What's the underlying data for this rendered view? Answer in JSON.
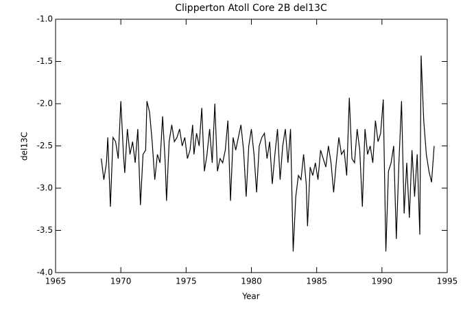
{
  "chart_data": {
    "type": "line",
    "title": "Clipperton Atoll Core 2B del13C",
    "x_label": "Year",
    "y_label": "del13C",
    "xlim": [
      1965,
      1995
    ],
    "xticks": [
      1965,
      1970,
      1975,
      1980,
      1985,
      1990,
      1995
    ],
    "ylim": [
      -4.0,
      -1.0
    ],
    "yticks": [
      {
        "value": -1.0,
        "label": "-1.0"
      },
      -1.5,
      {
        "value": -2.0,
        "label": "-2.0"
      },
      -2.5,
      {
        "value": -3.0,
        "label": "-3.0"
      },
      -3.5,
      {
        "value": -4.0,
        "label": "-4.0"
      }
    ],
    "color": "#000000",
    "x": [
      1968.5,
      1968.7,
      1968.9,
      1969.0,
      1969.2,
      1969.4,
      1969.6,
      1969.8,
      1970.0,
      1970.2,
      1970.3,
      1970.5,
      1970.7,
      1970.9,
      1971.1,
      1971.3,
      1971.5,
      1971.7,
      1971.9,
      1972.0,
      1972.2,
      1972.4,
      1972.6,
      1972.8,
      1973.0,
      1973.2,
      1973.4,
      1973.5,
      1973.7,
      1973.9,
      1974.1,
      1974.3,
      1974.5,
      1974.7,
      1974.9,
      1975.1,
      1975.3,
      1975.5,
      1975.6,
      1975.8,
      1976.0,
      1976.2,
      1976.4,
      1976.6,
      1976.8,
      1977.0,
      1977.2,
      1977.4,
      1977.6,
      1977.8,
      1978.0,
      1978.2,
      1978.4,
      1978.6,
      1978.8,
      1979.0,
      1979.2,
      1979.4,
      1979.6,
      1979.8,
      1980.0,
      1980.2,
      1980.4,
      1980.6,
      1980.8,
      1981.0,
      1981.2,
      1981.4,
      1981.6,
      1981.8,
      1982.0,
      1982.2,
      1982.4,
      1982.6,
      1982.8,
      1983.0,
      1983.2,
      1983.4,
      1983.6,
      1983.8,
      1984.0,
      1984.2,
      1984.3,
      1984.5,
      1984.7,
      1984.9,
      1985.1,
      1985.3,
      1985.5,
      1985.7,
      1985.9,
      1986.1,
      1986.3,
      1986.5,
      1986.7,
      1986.9,
      1987.1,
      1987.3,
      1987.5,
      1987.7,
      1987.9,
      1988.1,
      1988.3,
      1988.5,
      1988.7,
      1988.9,
      1989.1,
      1989.3,
      1989.5,
      1989.7,
      1989.9,
      1990.1,
      1990.3,
      1990.5,
      1990.7,
      1990.9,
      1991.1,
      1991.3,
      1991.5,
      1991.7,
      1991.9,
      1992.1,
      1992.3,
      1992.5,
      1992.7,
      1992.9,
      1993.0,
      1993.2,
      1993.4,
      1993.6,
      1993.8,
      1994.0
    ],
    "values": [
      -2.65,
      -2.9,
      -2.7,
      -2.4,
      -3.22,
      -2.4,
      -2.45,
      -2.65,
      -1.97,
      -2.6,
      -2.82,
      -2.3,
      -2.6,
      -2.45,
      -2.7,
      -2.3,
      -3.2,
      -2.6,
      -2.55,
      -1.97,
      -2.1,
      -2.45,
      -2.9,
      -2.6,
      -2.7,
      -2.15,
      -2.7,
      -3.15,
      -2.45,
      -2.25,
      -2.45,
      -2.4,
      -2.3,
      -2.5,
      -2.4,
      -2.65,
      -2.55,
      -2.25,
      -2.6,
      -2.35,
      -2.5,
      -2.05,
      -2.8,
      -2.6,
      -2.3,
      -2.7,
      -2.0,
      -2.8,
      -2.65,
      -2.7,
      -2.55,
      -2.2,
      -3.15,
      -2.4,
      -2.55,
      -2.4,
      -2.25,
      -2.55,
      -3.1,
      -2.5,
      -2.3,
      -2.6,
      -3.05,
      -2.5,
      -2.4,
      -2.35,
      -2.65,
      -2.45,
      -2.95,
      -2.6,
      -2.3,
      -2.9,
      -2.5,
      -2.3,
      -2.7,
      -2.3,
      -3.75,
      -3.1,
      -2.85,
      -2.9,
      -2.6,
      -2.95,
      -3.45,
      -2.75,
      -2.85,
      -2.7,
      -2.9,
      -2.55,
      -2.65,
      -2.75,
      -2.5,
      -2.7,
      -3.05,
      -2.7,
      -2.4,
      -2.6,
      -2.55,
      -2.85,
      -1.93,
      -2.65,
      -2.7,
      -2.3,
      -2.55,
      -3.22,
      -2.3,
      -2.6,
      -2.5,
      -2.7,
      -2.2,
      -2.45,
      -2.35,
      -1.95,
      -3.75,
      -2.8,
      -2.7,
      -2.5,
      -3.6,
      -2.7,
      -1.97,
      -3.3,
      -2.7,
      -3.35,
      -2.55,
      -3.1,
      -2.6,
      -3.55,
      -1.43,
      -2.2,
      -2.6,
      -2.8,
      -2.93,
      -2.5
    ]
  }
}
